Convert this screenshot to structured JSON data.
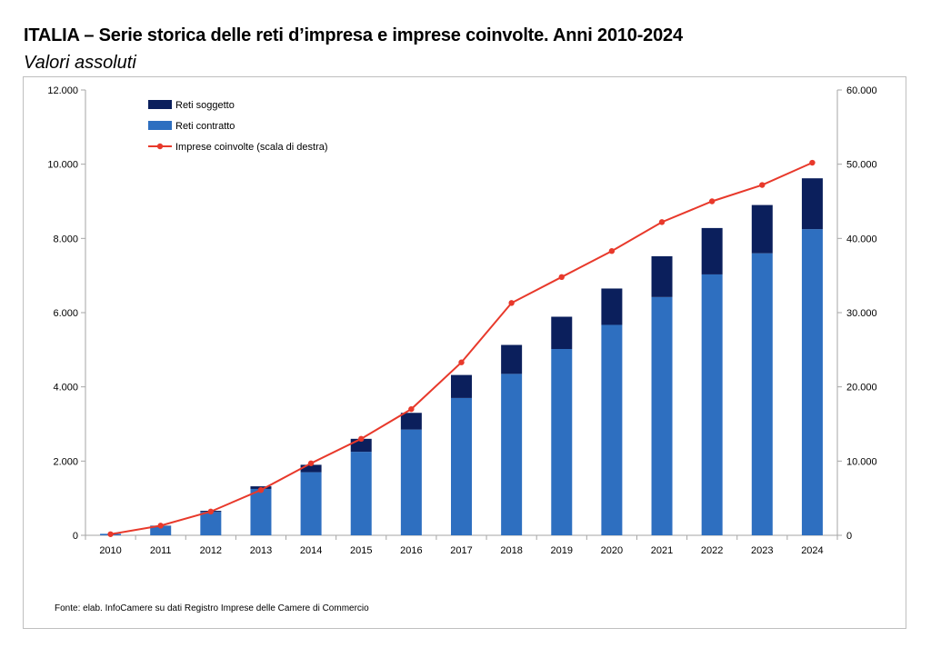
{
  "title": "ITALIA – Serie storica delle reti d’impresa e imprese coinvolte. Anni 2010-2024",
  "subtitle": "Valori assoluti",
  "source": "Fonte: elab. InfoCamere su dati Registro Imprese delle Camere di Commercio",
  "colors": {
    "reti_soggetto": "#0b1f5c",
    "reti_contratto": "#2e6fc0",
    "imprese": "#e8392b",
    "axis": "#a6a6a6"
  },
  "chart_data": {
    "type": "bar",
    "stacked": true,
    "categories": [
      "2010",
      "2011",
      "2012",
      "2013",
      "2014",
      "2015",
      "2016",
      "2017",
      "2018",
      "2019",
      "2020",
      "2021",
      "2022",
      "2023",
      "2024"
    ],
    "series": [
      {
        "name": "Reti contratto",
        "type": "bar",
        "axis": "left",
        "values": [
          40,
          250,
          630,
          1250,
          1700,
          2250,
          2850,
          3700,
          4350,
          5020,
          5670,
          6420,
          7030,
          7600,
          8250
        ]
      },
      {
        "name": "Reti soggetto",
        "type": "bar",
        "axis": "left",
        "values": [
          0,
          10,
          30,
          70,
          200,
          350,
          450,
          620,
          780,
          870,
          980,
          1100,
          1250,
          1300,
          1370
        ]
      },
      {
        "name": "Imprese coinvolte (scala di destra)",
        "type": "line",
        "axis": "right",
        "values": [
          150,
          1300,
          3200,
          6100,
          9700,
          13000,
          17000,
          23300,
          31300,
          34800,
          38300,
          42200,
          45000,
          47200,
          50200
        ]
      }
    ],
    "y_left": {
      "range": [
        0,
        12000
      ],
      "ticks": [
        "0",
        "2.000",
        "4.000",
        "6.000",
        "8.000",
        "10.000",
        "12.000"
      ]
    },
    "y_right": {
      "range": [
        0,
        60000
      ],
      "ticks": [
        "0",
        "10.000",
        "20.000",
        "30.000",
        "40.000",
        "50.000",
        "60.000"
      ]
    },
    "grid": false,
    "legend_position": "top-left"
  }
}
